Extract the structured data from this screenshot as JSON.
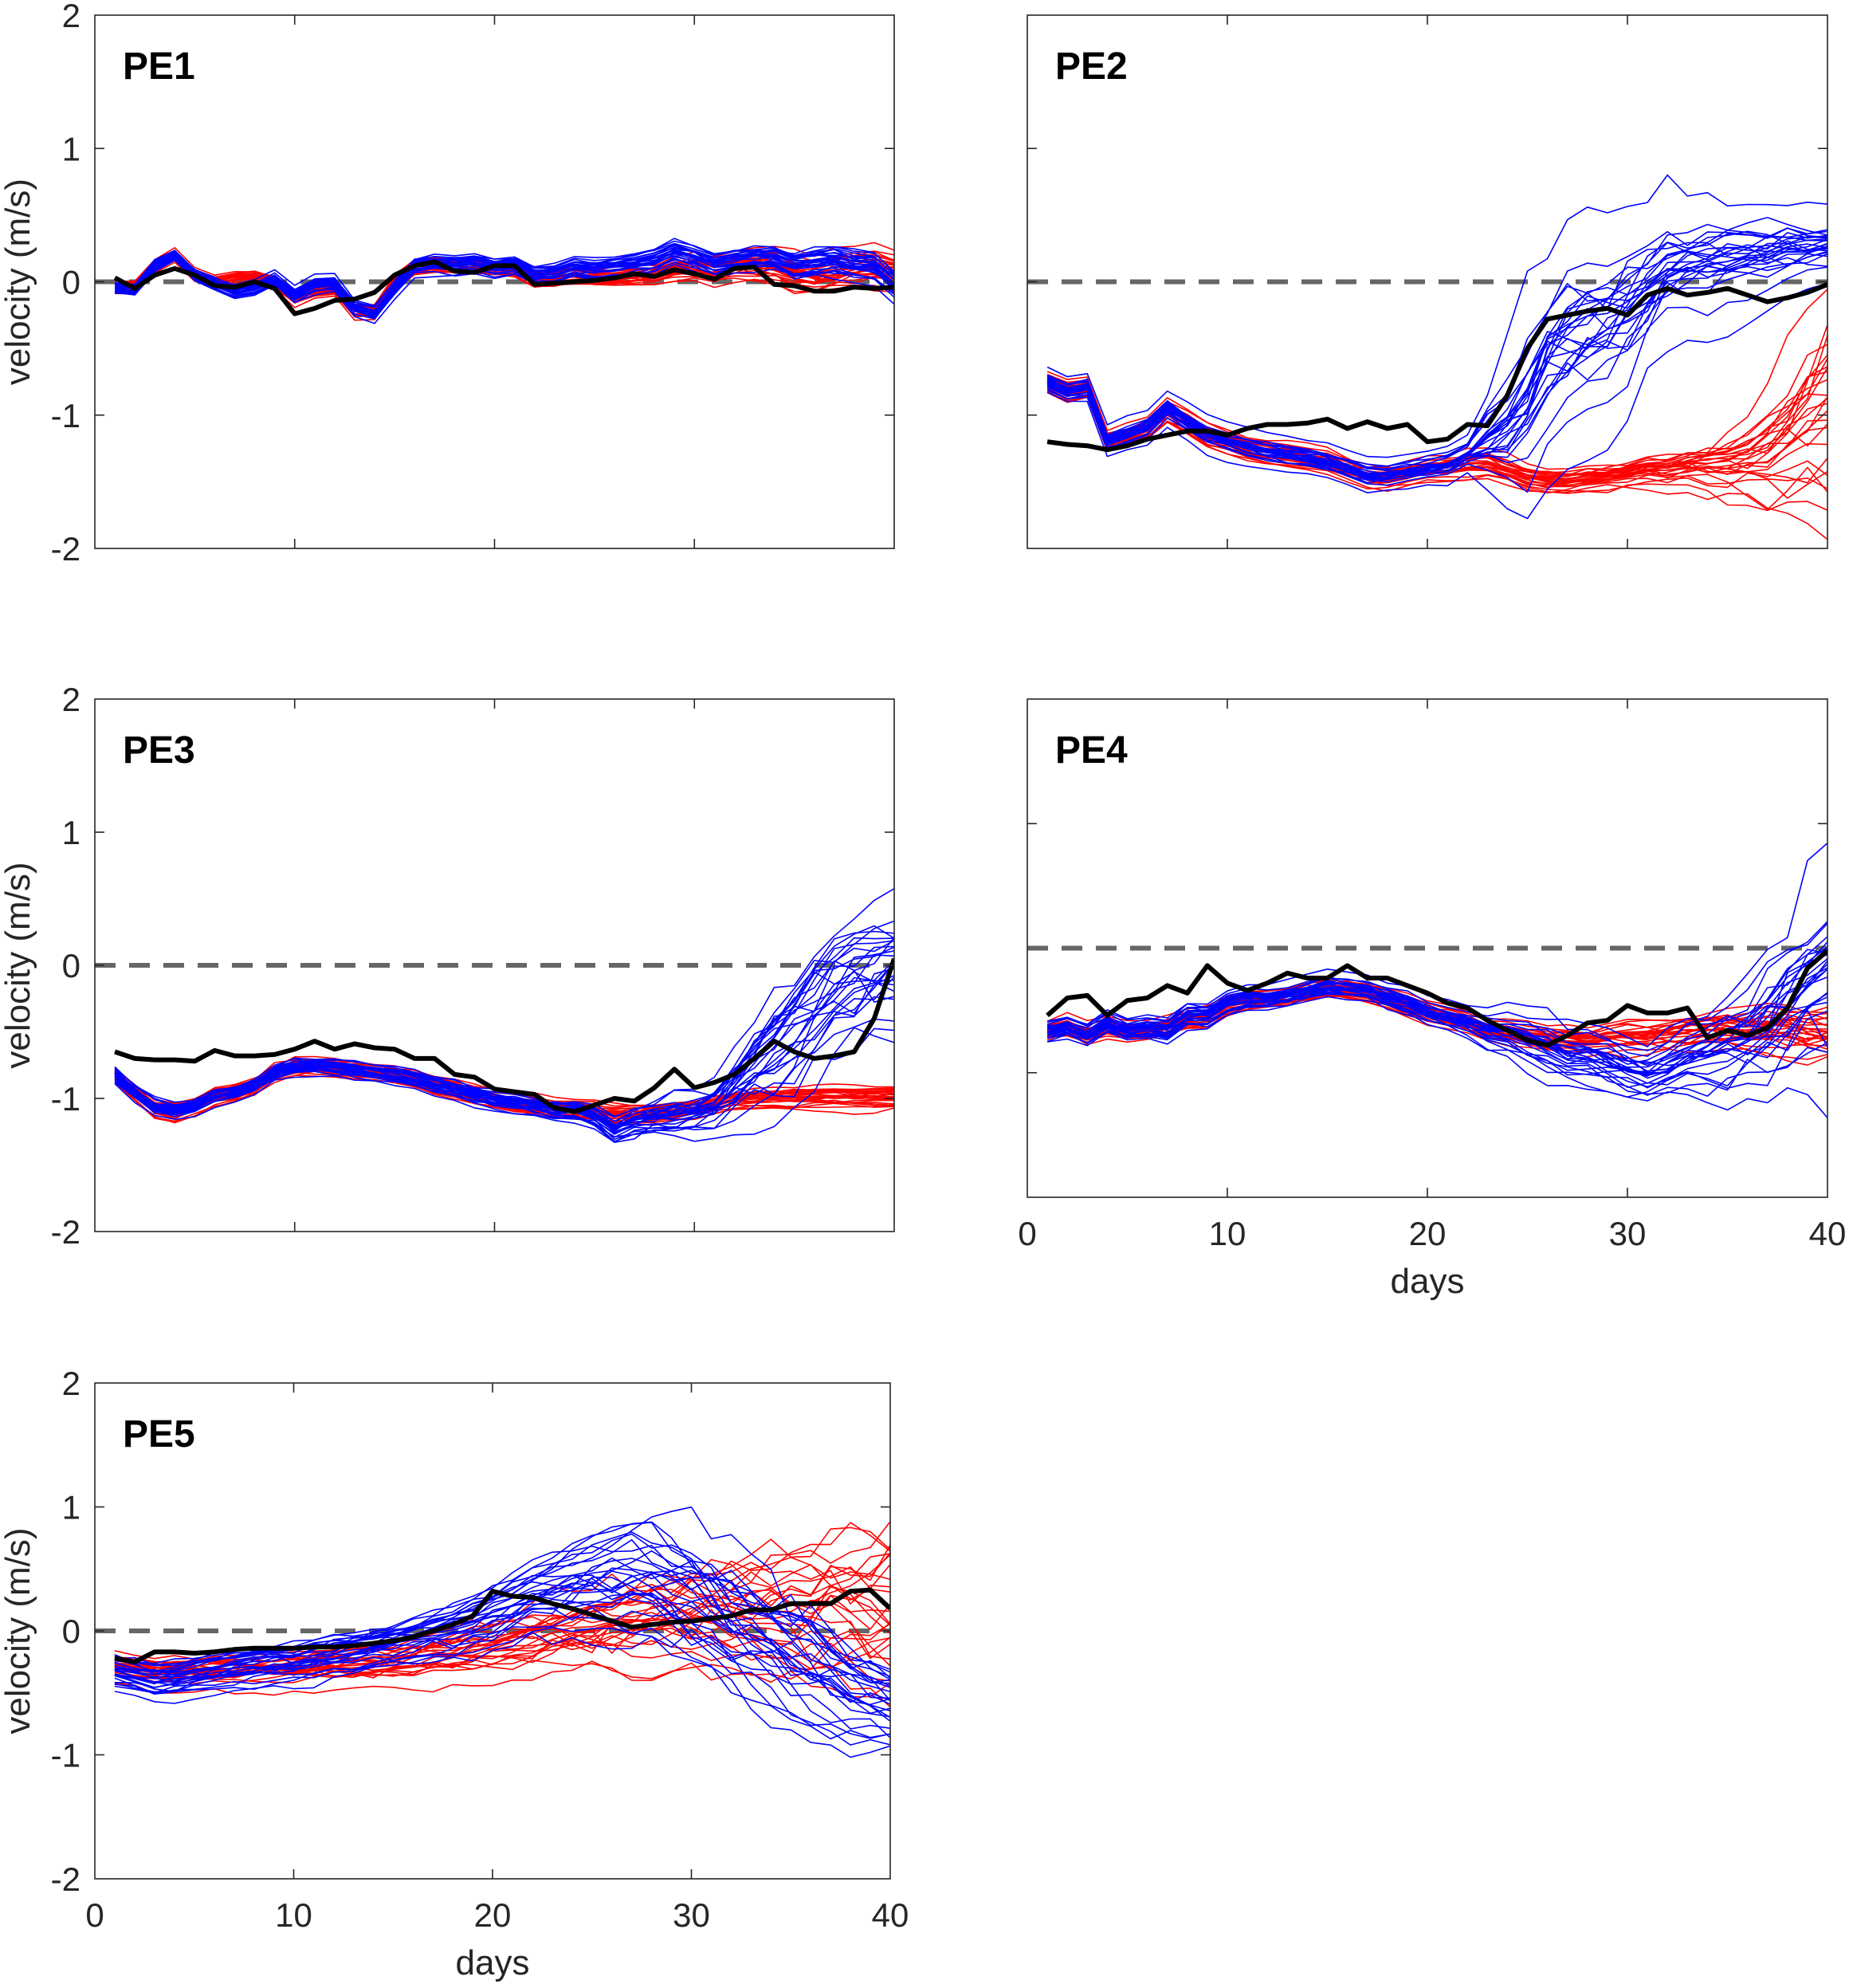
{
  "colors": {
    "blue": "#0000ff",
    "red": "#ff0000",
    "observed": "#000000",
    "zero_line": "#666666"
  },
  "chart_data": [
    {
      "type": "line",
      "title": "PE1",
      "xlabel": "",
      "ylabel": "velocity (m/s)",
      "xlim": [
        0,
        40
      ],
      "ylim": [
        -2,
        2
      ],
      "xticks": [
        0,
        10,
        20,
        30,
        40
      ],
      "yticks": [
        -2,
        -1,
        0,
        1,
        2
      ],
      "show_xticklabels": false,
      "show_yticklabels": true,
      "reference_line": 0,
      "x": "days 1-40",
      "observed": [
        0.03,
        -0.05,
        0.05,
        0.1,
        0.05,
        -0.03,
        -0.04,
        0.0,
        -0.05,
        -0.24,
        -0.2,
        -0.14,
        -0.13,
        -0.08,
        0.05,
        0.12,
        0.15,
        0.08,
        0.07,
        0.12,
        0.12,
        -0.02,
        -0.01,
        0.0,
        0.01,
        0.03,
        0.06,
        0.04,
        0.09,
        0.06,
        0.02,
        0.1,
        0.11,
        -0.02,
        -0.03,
        -0.07,
        -0.07,
        -0.04,
        -0.05,
        -0.04
      ],
      "blue_mean": [
        -0.05,
        -0.06,
        0.12,
        0.2,
        0.05,
        -0.02,
        -0.08,
        -0.05,
        0.02,
        -0.1,
        -0.03,
        -0.01,
        -0.2,
        -0.24,
        -0.05,
        0.12,
        0.14,
        0.13,
        0.14,
        0.1,
        0.12,
        0.05,
        0.05,
        0.1,
        0.08,
        0.1,
        0.12,
        0.15,
        0.22,
        0.18,
        0.12,
        0.15,
        0.17,
        0.18,
        0.12,
        0.14,
        0.15,
        0.12,
        0.1,
        -0.02
      ],
      "blue_spread": [
        [
          1,
          0.02
        ],
        [
          20,
          0.03
        ],
        [
          40,
          0.05
        ]
      ],
      "red_mean": [
        -0.05,
        -0.04,
        0.12,
        0.2,
        0.05,
        0.0,
        0.02,
        0.03,
        0.0,
        -0.12,
        -0.06,
        -0.05,
        -0.22,
        -0.22,
        0.0,
        0.12,
        0.13,
        0.12,
        0.12,
        0.1,
        0.1,
        0.02,
        0.03,
        0.05,
        0.03,
        0.04,
        0.05,
        0.06,
        0.1,
        0.12,
        0.1,
        0.13,
        0.14,
        0.12,
        0.06,
        0.04,
        0.08,
        0.1,
        0.12,
        0.08
      ],
      "red_spread": [
        [
          1,
          0.02
        ],
        [
          25,
          0.03
        ],
        [
          32,
          0.05
        ],
        [
          40,
          0.07
        ]
      ]
    },
    {
      "type": "line",
      "title": "PE2",
      "xlabel": "",
      "ylabel": "",
      "xlim": [
        0,
        40
      ],
      "ylim": [
        -2,
        2
      ],
      "xticks": [
        0,
        10,
        20,
        30,
        40
      ],
      "yticks": [
        -2,
        -1,
        0,
        1,
        2
      ],
      "show_xticklabels": false,
      "show_yticklabels": false,
      "reference_line": 0,
      "x": "days 1-40",
      "observed": [
        -1.2,
        -1.22,
        -1.23,
        -1.26,
        -1.23,
        -1.18,
        -1.15,
        -1.12,
        -1.12,
        -1.15,
        -1.1,
        -1.07,
        -1.07,
        -1.06,
        -1.03,
        -1.1,
        -1.05,
        -1.1,
        -1.07,
        -1.2,
        -1.18,
        -1.07,
        -1.08,
        -0.85,
        -0.5,
        -0.28,
        -0.25,
        -0.22,
        -0.2,
        -0.25,
        -0.1,
        -0.05,
        -0.1,
        -0.08,
        -0.05,
        -0.1,
        -0.15,
        -0.12,
        -0.08,
        -0.02
      ],
      "blue_mean": [
        -0.75,
        -0.82,
        -0.8,
        -1.2,
        -1.15,
        -1.1,
        -0.95,
        -1.05,
        -1.15,
        -1.2,
        -1.25,
        -1.28,
        -1.3,
        -1.32,
        -1.35,
        -1.4,
        -1.45,
        -1.45,
        -1.43,
        -1.4,
        -1.38,
        -1.3,
        -1.2,
        -1.1,
        -0.9,
        -0.6,
        -0.45,
        -0.35,
        -0.3,
        -0.2,
        -0.05,
        0.08,
        0.12,
        0.14,
        0.18,
        0.2,
        0.22,
        0.24,
        0.26,
        0.28
      ],
      "blue_spread": [
        [
          1,
          0.03
        ],
        [
          22,
          0.04
        ],
        [
          25,
          0.25
        ],
        [
          29,
          0.3
        ],
        [
          33,
          0.15
        ],
        [
          40,
          0.08
        ]
      ],
      "red_mean": [
        -0.75,
        -0.82,
        -0.8,
        -1.2,
        -1.15,
        -1.1,
        -0.97,
        -1.05,
        -1.15,
        -1.2,
        -1.25,
        -1.28,
        -1.3,
        -1.32,
        -1.35,
        -1.4,
        -1.46,
        -1.47,
        -1.44,
        -1.41,
        -1.4,
        -1.38,
        -1.37,
        -1.42,
        -1.48,
        -1.5,
        -1.5,
        -1.48,
        -1.47,
        -1.45,
        -1.42,
        -1.42,
        -1.4,
        -1.4,
        -1.38,
        -1.35,
        -1.3,
        -1.2,
        -1.1,
        -1.0
      ],
      "red_spread": [
        [
          1,
          0.03
        ],
        [
          28,
          0.04
        ],
        [
          33,
          0.06
        ],
        [
          36,
          0.12
        ],
        [
          40,
          0.35
        ]
      ]
    },
    {
      "type": "line",
      "title": "PE3",
      "xlabel": "",
      "ylabel": "velocity (m/s)",
      "xlim": [
        0,
        40
      ],
      "ylim": [
        -2,
        2
      ],
      "xticks": [
        0,
        10,
        20,
        30,
        40
      ],
      "yticks": [
        -2,
        -1,
        0,
        1,
        2
      ],
      "show_xticklabels": false,
      "show_yticklabels": true,
      "reference_line": 0,
      "x": "days 1-40",
      "observed": [
        -0.65,
        -0.7,
        -0.71,
        -0.71,
        -0.72,
        -0.64,
        -0.68,
        -0.68,
        -0.67,
        -0.63,
        -0.57,
        -0.63,
        -0.59,
        -0.62,
        -0.63,
        -0.7,
        -0.7,
        -0.82,
        -0.84,
        -0.93,
        -0.95,
        -0.97,
        -1.07,
        -1.1,
        -1.05,
        -1.0,
        -1.02,
        -0.92,
        -0.78,
        -0.92,
        -0.88,
        -0.82,
        -0.7,
        -0.57,
        -0.65,
        -0.7,
        -0.68,
        -0.65,
        -0.4,
        0.05
      ],
      "blue_mean": [
        -0.82,
        -0.95,
        -1.05,
        -1.08,
        -1.05,
        -0.98,
        -0.95,
        -0.9,
        -0.8,
        -0.76,
        -0.75,
        -0.76,
        -0.78,
        -0.8,
        -0.82,
        -0.85,
        -0.9,
        -0.93,
        -0.97,
        -1.0,
        -1.03,
        -1.05,
        -1.08,
        -1.08,
        -1.12,
        -1.22,
        -1.15,
        -1.12,
        -1.1,
        -1.1,
        -1.05,
        -0.9,
        -0.75,
        -0.6,
        -0.45,
        -0.3,
        -0.18,
        -0.08,
        0.0,
        0.05
      ],
      "blue_spread": [
        [
          1,
          0.03
        ],
        [
          24,
          0.04
        ],
        [
          27,
          0.06
        ],
        [
          31,
          0.1
        ],
        [
          35,
          0.25
        ],
        [
          40,
          0.25
        ]
      ],
      "red_mean": [
        -0.82,
        -0.95,
        -1.07,
        -1.1,
        -1.05,
        -0.98,
        -0.95,
        -0.9,
        -0.8,
        -0.76,
        -0.75,
        -0.76,
        -0.78,
        -0.8,
        -0.82,
        -0.85,
        -0.9,
        -0.93,
        -0.97,
        -1.0,
        -1.03,
        -1.05,
        -1.07,
        -1.08,
        -1.1,
        -1.12,
        -1.12,
        -1.12,
        -1.1,
        -1.08,
        -1.05,
        -1.02,
        -1.0,
        -0.99,
        -0.99,
        -0.98,
        -0.98,
        -0.98,
        -0.98,
        -0.98
      ],
      "red_spread": [
        [
          1,
          0.03
        ],
        [
          30,
          0.03
        ],
        [
          40,
          0.04
        ]
      ]
    },
    {
      "type": "line",
      "title": "PE4",
      "xlabel": "days",
      "ylabel": "",
      "xlim": [
        0,
        40
      ],
      "ylim": [
        -1,
        1
      ],
      "xticks": [
        0,
        10,
        20,
        30,
        40
      ],
      "yticks": [
        -0.5,
        0.5
      ],
      "show_xticklabels": true,
      "show_yticklabels": false,
      "reference_line": 0,
      "x": "days 1-40",
      "observed": [
        -0.27,
        -0.2,
        -0.19,
        -0.27,
        -0.21,
        -0.2,
        -0.15,
        -0.18,
        -0.07,
        -0.14,
        -0.17,
        -0.14,
        -0.1,
        -0.12,
        -0.12,
        -0.07,
        -0.12,
        -0.12,
        -0.15,
        -0.18,
        -0.22,
        -0.24,
        -0.29,
        -0.33,
        -0.37,
        -0.39,
        -0.35,
        -0.3,
        -0.29,
        -0.23,
        -0.26,
        -0.26,
        -0.24,
        -0.36,
        -0.33,
        -0.35,
        -0.32,
        -0.24,
        -0.08,
        -0.01
      ],
      "blue_mean": [
        -0.33,
        -0.32,
        -0.35,
        -0.3,
        -0.33,
        -0.32,
        -0.33,
        -0.27,
        -0.27,
        -0.22,
        -0.2,
        -0.2,
        -0.19,
        -0.17,
        -0.15,
        -0.16,
        -0.17,
        -0.2,
        -0.22,
        -0.26,
        -0.28,
        -0.3,
        -0.33,
        -0.34,
        -0.37,
        -0.4,
        -0.43,
        -0.43,
        -0.45,
        -0.48,
        -0.5,
        -0.47,
        -0.43,
        -0.41,
        -0.38,
        -0.35,
        -0.3,
        -0.22,
        -0.14,
        -0.08
      ],
      "blue_spread": [
        [
          1,
          0.02
        ],
        [
          22,
          0.02
        ],
        [
          26,
          0.05
        ],
        [
          32,
          0.05
        ],
        [
          36,
          0.1
        ],
        [
          40,
          0.2
        ]
      ],
      "red_mean": [
        -0.33,
        -0.31,
        -0.34,
        -0.32,
        -0.33,
        -0.33,
        -0.31,
        -0.29,
        -0.28,
        -0.23,
        -0.21,
        -0.2,
        -0.19,
        -0.17,
        -0.16,
        -0.17,
        -0.18,
        -0.2,
        -0.23,
        -0.26,
        -0.28,
        -0.3,
        -0.33,
        -0.34,
        -0.35,
        -0.36,
        -0.36,
        -0.37,
        -0.36,
        -0.35,
        -0.35,
        -0.34,
        -0.33,
        -0.32,
        -0.32,
        -0.32,
        -0.32,
        -0.32,
        -0.33,
        -0.33
      ],
      "red_spread": [
        [
          1,
          0.02
        ],
        [
          25,
          0.02
        ],
        [
          33,
          0.04
        ],
        [
          40,
          0.05
        ]
      ]
    },
    {
      "type": "line",
      "title": "PE5",
      "xlabel": "days",
      "ylabel": "velocity (m/s)",
      "xlim": [
        0,
        40
      ],
      "ylim": [
        -2,
        2
      ],
      "xticks": [
        0,
        10,
        20,
        30,
        40
      ],
      "yticks": [
        -2,
        -1,
        0,
        1,
        2
      ],
      "show_xticklabels": true,
      "show_yticklabels": true,
      "reference_line": 0,
      "x": "days 1-40",
      "observed": [
        -0.22,
        -0.25,
        -0.17,
        -0.17,
        -0.18,
        -0.17,
        -0.15,
        -0.14,
        -0.14,
        -0.14,
        -0.13,
        -0.13,
        -0.12,
        -0.1,
        -0.08,
        -0.05,
        0.0,
        0.05,
        0.12,
        0.32,
        0.28,
        0.27,
        0.22,
        0.18,
        0.13,
        0.08,
        0.03,
        0.05,
        0.07,
        0.08,
        0.1,
        0.12,
        0.17,
        0.17,
        0.22,
        0.22,
        0.22,
        0.32,
        0.33,
        0.18
      ],
      "blue_mean": [
        -0.33,
        -0.36,
        -0.4,
        -0.38,
        -0.35,
        -0.33,
        -0.3,
        -0.28,
        -0.26,
        -0.25,
        -0.22,
        -0.2,
        -0.18,
        -0.15,
        -0.12,
        -0.08,
        -0.04,
        0.0,
        0.05,
        0.12,
        0.2,
        0.27,
        0.32,
        0.36,
        0.38,
        0.39,
        0.38,
        0.35,
        0.3,
        0.24,
        0.16,
        0.07,
        -0.03,
        -0.13,
        -0.23,
        -0.33,
        -0.42,
        -0.5,
        -0.56,
        -0.6
      ],
      "blue_spread": [
        [
          1,
          0.06
        ],
        [
          15,
          0.07
        ],
        [
          22,
          0.12
        ],
        [
          30,
          0.25
        ],
        [
          36,
          0.22
        ],
        [
          40,
          0.14
        ]
      ],
      "red_mean": [
        -0.27,
        -0.3,
        -0.33,
        -0.33,
        -0.32,
        -0.32,
        -0.32,
        -0.31,
        -0.3,
        -0.29,
        -0.28,
        -0.27,
        -0.26,
        -0.25,
        -0.24,
        -0.22,
        -0.2,
        -0.18,
        -0.15,
        -0.12,
        -0.09,
        -0.05,
        -0.02,
        0.01,
        0.04,
        0.06,
        0.08,
        0.1,
        0.11,
        0.12,
        0.13,
        0.14,
        0.15,
        0.16,
        0.17,
        0.18,
        0.18,
        0.19,
        0.2,
        0.2
      ],
      "red_spread": [
        [
          1,
          0.05
        ],
        [
          15,
          0.08
        ],
        [
          22,
          0.12
        ],
        [
          30,
          0.2
        ],
        [
          40,
          0.35
        ]
      ]
    }
  ]
}
